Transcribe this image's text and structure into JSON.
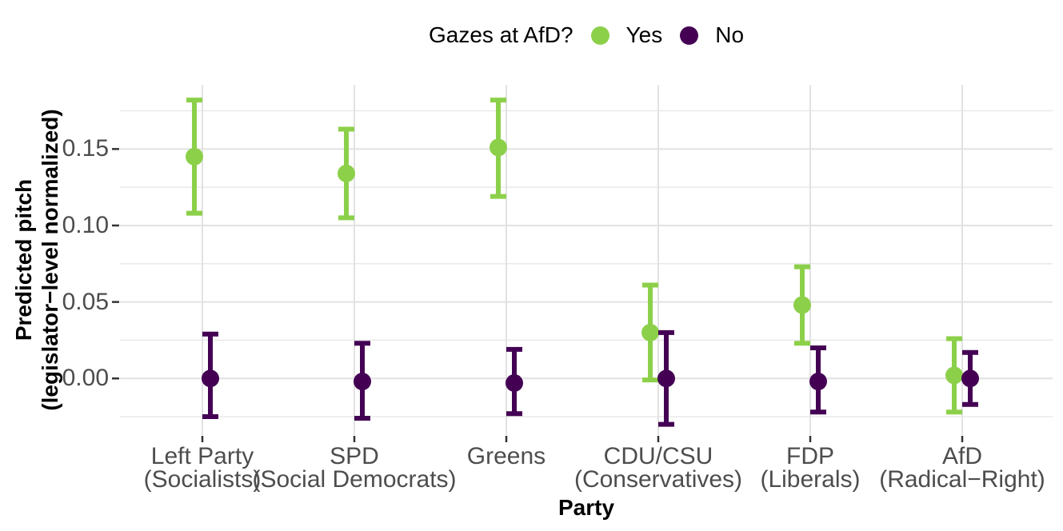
{
  "legend": {
    "title": "Gazes at AfD?",
    "position": "top-center"
  },
  "chart_data": {
    "type": "pointrange",
    "legend_title": "Gazes at AfD?",
    "xlabel": "Party",
    "ylabel": "Predicted pitch (legislator−level normalized)",
    "ylabel_lines": [
      "Predicted pitch",
      "(legislator−level normalized)"
    ],
    "ylim": [
      -0.037,
      0.192
    ],
    "y_major_ticks": [
      {
        "value": 0.15,
        "label": "0.15"
      },
      {
        "value": 0.1,
        "label": "0.10"
      },
      {
        "value": 0.05,
        "label": "0.05"
      },
      {
        "value": 0.0,
        "label": "0.00"
      }
    ],
    "y_minor_gridlines": [
      0.175,
      0.125,
      0.075,
      0.025,
      -0.025
    ],
    "grid": {
      "horizontal": "major+minor",
      "vertical": "major-at-categories"
    },
    "legend_position": "top-center",
    "categories": [
      {
        "key": "left-party",
        "line1": "Left Party",
        "line2": "(Socialists)"
      },
      {
        "key": "spd",
        "line1": "SPD",
        "line2": "(Social Democrats)"
      },
      {
        "key": "greens",
        "line1": "Greens",
        "line2": ""
      },
      {
        "key": "cdu-csu",
        "line1": "CDU/CSU",
        "line2": "(Conservatives)"
      },
      {
        "key": "fdp",
        "line1": "FDP",
        "line2": "(Liberals)"
      },
      {
        "key": "afd",
        "line1": "AfD",
        "line2": "(Radical−Right)"
      }
    ],
    "series": [
      {
        "name": "Yes",
        "color": "#8CD04A",
        "points": [
          {
            "y": 0.145,
            "lo": 0.108,
            "hi": 0.182
          },
          {
            "y": 0.134,
            "lo": 0.105,
            "hi": 0.163
          },
          {
            "y": 0.151,
            "lo": 0.119,
            "hi": 0.182
          },
          {
            "y": 0.03,
            "lo": -0.001,
            "hi": 0.061
          },
          {
            "y": 0.048,
            "lo": 0.023,
            "hi": 0.073
          },
          {
            "y": 0.002,
            "lo": -0.022,
            "hi": 0.026
          }
        ]
      },
      {
        "name": "No",
        "color": "#440154",
        "points": [
          {
            "y": 0.0,
            "lo": -0.025,
            "hi": 0.029
          },
          {
            "y": -0.002,
            "lo": -0.026,
            "hi": 0.023
          },
          {
            "y": -0.003,
            "lo": -0.023,
            "hi": 0.019
          },
          {
            "y": 0.0,
            "lo": -0.03,
            "hi": 0.03
          },
          {
            "y": -0.002,
            "lo": -0.022,
            "hi": 0.02
          },
          {
            "y": 0.0,
            "lo": -0.017,
            "hi": 0.017
          }
        ]
      }
    ],
    "colors": {
      "axis_text": "#4D4D4D",
      "gridline_major": "#E2E2E2",
      "gridline_minor": "#E9E9E9",
      "tick_mark": "#333333",
      "background": "#FFFFFF"
    }
  }
}
